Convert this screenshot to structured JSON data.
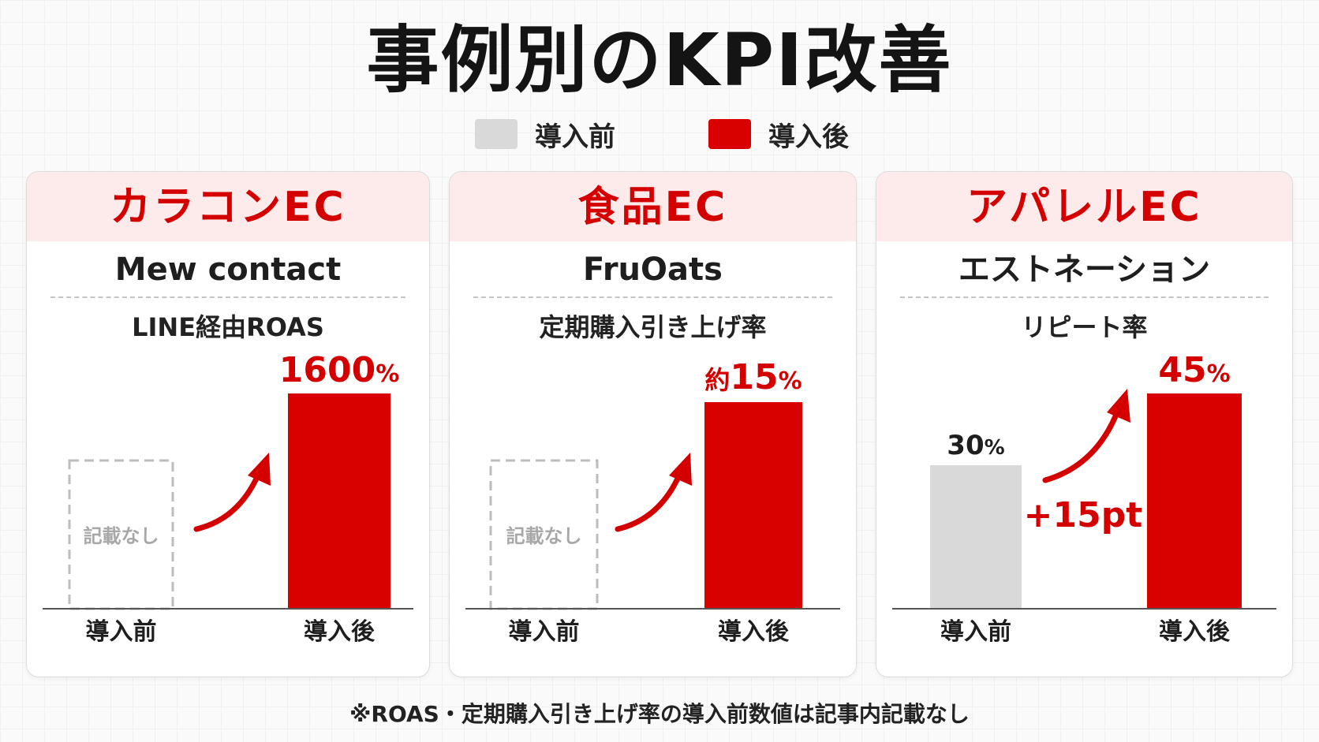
{
  "title": "事例別のKPI改善",
  "legend": {
    "before": "導入前",
    "after": "導入後"
  },
  "colors": {
    "before": "#d9d9d9",
    "after": "#d90000",
    "accent": "#d40000",
    "header_bg": "#fdeaea"
  },
  "footnote": "※ROAS・定期購入引き上げ率の導入前数値は記事内記載なし",
  "chart_data": [
    {
      "type": "bar",
      "title": "カラコンEC",
      "subtitle": "Mew contact",
      "metric": "LINE経由ROAS",
      "categories": [
        "導入前",
        "導入後"
      ],
      "values": [
        null,
        1600
      ],
      "unit": "%",
      "labels": {
        "before": "記載なし",
        "after_num": "1600",
        "after_unit": "%",
        "after_prefix": ""
      },
      "arrow": true,
      "arrow_label": ""
    },
    {
      "type": "bar",
      "title": "食品EC",
      "subtitle": "FruOats",
      "metric": "定期購入引き上げ率",
      "categories": [
        "導入前",
        "導入後"
      ],
      "values": [
        null,
        15
      ],
      "unit": "%",
      "labels": {
        "before": "記載なし",
        "after_num": "15",
        "after_unit": "%",
        "after_prefix": "約"
      },
      "arrow": true,
      "arrow_label": ""
    },
    {
      "type": "bar",
      "title": "アパレルEC",
      "subtitle": "エストネーション",
      "metric": "リピート率",
      "categories": [
        "導入前",
        "導入後"
      ],
      "values": [
        30,
        45
      ],
      "unit": "%",
      "labels": {
        "before_num": "30",
        "before_unit": "%",
        "after_num": "45",
        "after_unit": "%",
        "after_prefix": ""
      },
      "arrow": true,
      "arrow_label": "+15pt"
    }
  ]
}
